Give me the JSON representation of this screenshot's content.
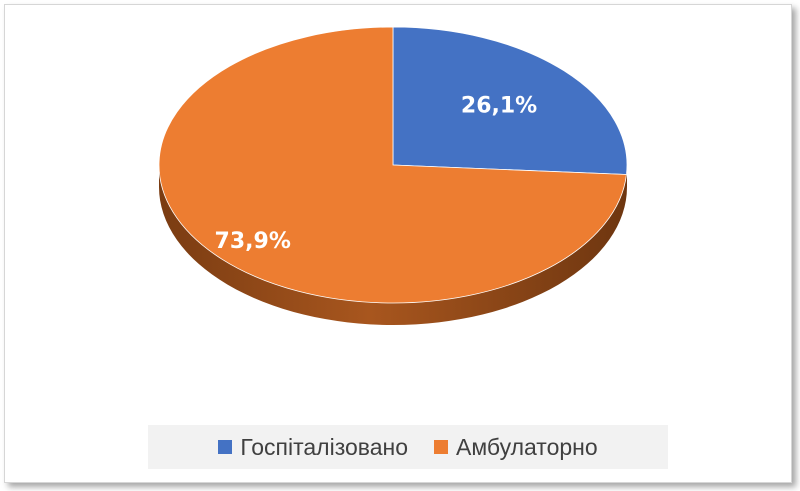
{
  "chart_data": {
    "type": "pie",
    "categories": [
      "Госпіталізовано",
      "Амбулаторно"
    ],
    "values": [
      26.1,
      73.9
    ],
    "value_labels": [
      "26,1%",
      "73,9%"
    ],
    "colors": [
      "#4472c4",
      "#ed7d31"
    ],
    "side_colors": [
      "#2f528f",
      "#a0521d"
    ],
    "title": "",
    "legend_position": "bottom",
    "style": "3d"
  }
}
